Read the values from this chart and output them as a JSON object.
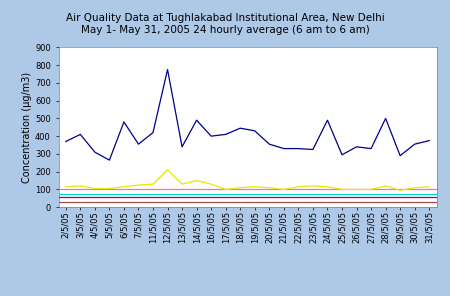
{
  "title_line1": "Air Quality Data at Tughlakabad Institutional Area, New Delhi",
  "title_line2": "May 1- May 31, 2005 24 hourly average (6 am to 6 am)",
  "ylabel": "Concentration (µg/m3)",
  "background_color": "#aec8e8",
  "plot_bg_color": "#ffffff",
  "dates": [
    "2/5/05",
    "3/5/05",
    "4/5/05",
    "5/5/05",
    "6/5/05",
    "7/5/05",
    "11/5/05",
    "12/5/05",
    "13/5/05",
    "14/5/05",
    "16/5/05",
    "17/5/05",
    "18/5/05",
    "19/5/05",
    "20/5/05",
    "21/5/05",
    "22/5/05",
    "23/5/05",
    "24/5/05",
    "25/5/05",
    "26/5/05",
    "27/5/05",
    "28/5/05",
    "29/5/05",
    "30/5/05",
    "31/5/05"
  ],
  "SPM": [
    370,
    410,
    310,
    265,
    480,
    355,
    420,
    775,
    340,
    490,
    400,
    410,
    445,
    430,
    355,
    330,
    330,
    325,
    490,
    295,
    340,
    330,
    500,
    290,
    355,
    375
  ],
  "RSPM": [
    115,
    120,
    105,
    105,
    115,
    125,
    130,
    210,
    130,
    150,
    130,
    100,
    110,
    115,
    110,
    100,
    115,
    120,
    115,
    100,
    100,
    100,
    120,
    95,
    110,
    115
  ],
  "SPM_LIMIT": 100,
  "RSPM_LIMIT": 75,
  "NO2": 60,
  "NO2_LIMIT": 30,
  "SPM_color": "#00008b",
  "RSPM_color": "#e8e800",
  "SPM_LIMIT_color": "#ff69b4",
  "RSPM_LIMIT_color": "#00d8d8",
  "NO2_color": "#8000a0",
  "NO2_LIMIT_color": "#a05050",
  "ylim": [
    0,
    900
  ],
  "yticks": [
    0,
    100,
    200,
    300,
    400,
    500,
    600,
    700,
    800,
    900
  ],
  "title_fontsize": 7.5,
  "axis_fontsize": 7,
  "tick_fontsize": 6,
  "legend_fontsize": 6
}
